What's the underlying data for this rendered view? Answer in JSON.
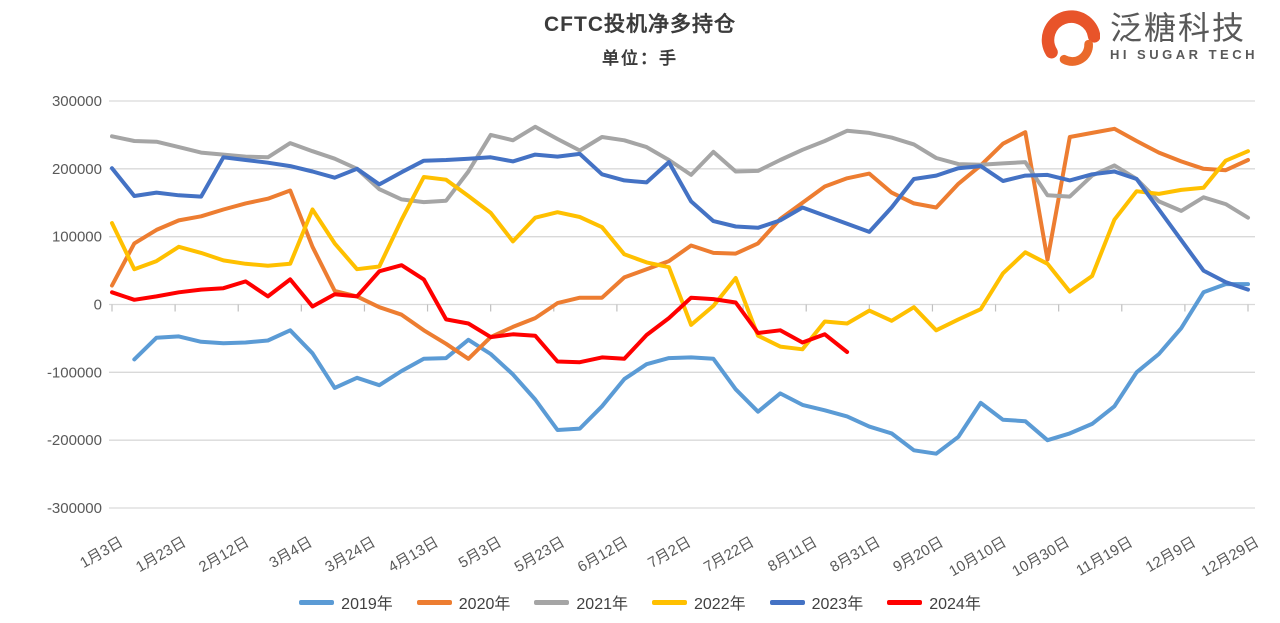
{
  "header": {
    "title": "CFTC投机净多持仓",
    "subtitle": "单位：手"
  },
  "logo": {
    "company": "泛糖科技",
    "tagline": "HI SUGAR TECH",
    "icon": "swirl-icon",
    "icon_color": "#E8542A",
    "text_color": "#595959"
  },
  "chart_data": {
    "type": "line",
    "title": "CFTC投机净多持仓",
    "unit_label": "单位：手",
    "ylim": [
      -300000,
      300000
    ],
    "y_ticks": [
      300000,
      200000,
      100000,
      0,
      -100000,
      -200000,
      -300000
    ],
    "grid": true,
    "legend_position": "bottom",
    "points_per_series": 52,
    "x_tick_labels": [
      "1月3日",
      "1月23日",
      "2月12日",
      "3月4日",
      "3月24日",
      "4月13日",
      "5月3日",
      "5月23日",
      "6月12日",
      "7月2日",
      "7月22日",
      "8月11日",
      "8月31日",
      "9月20日",
      "10月10日",
      "10月30日",
      "11月19日",
      "12月9日",
      "12月29日"
    ],
    "grid_color": "#D9D9D9",
    "tick_color": "#C0C0C0",
    "series": [
      {
        "name": "2019年",
        "color": "#5B9BD5",
        "values": [
          null,
          -81000,
          -49000,
          -47000,
          -55000,
          -57000,
          -56000,
          -53000,
          -38000,
          -72000,
          -123000,
          -108000,
          -119000,
          -98000,
          -80000,
          -79000,
          -52000,
          -73000,
          -103000,
          -140000,
          -185000,
          -183000,
          -150000,
          -110000,
          -88000,
          -79000,
          -78000,
          -80000,
          -125000,
          -158000,
          -131000,
          -148000,
          -156000,
          -165000,
          -180000,
          -190000,
          -215000,
          -220000,
          -195000,
          -145000,
          -170000,
          -172000,
          -200000,
          -190000,
          -176000,
          -150000,
          -100000,
          -73000,
          -35000,
          18000,
          30000,
          30000
        ]
      },
      {
        "name": "2020年",
        "color": "#ED7D31",
        "values": [
          28000,
          90000,
          110000,
          124000,
          130000,
          140000,
          149000,
          156000,
          168000,
          85000,
          20000,
          12000,
          -4000,
          -15000,
          -38000,
          -58000,
          -80000,
          -48000,
          -33000,
          -20000,
          2000,
          10000,
          10000,
          40000,
          52000,
          64000,
          87000,
          76000,
          75000,
          90000,
          126000,
          150000,
          174000,
          186000,
          193000,
          165000,
          149000,
          143000,
          178000,
          205000,
          237000,
          254000,
          66000,
          247000,
          253000,
          259000,
          241000,
          224000,
          211000,
          200000,
          198000,
          213000
        ]
      },
      {
        "name": "2021年",
        "color": "#A5A5A5",
        "values": [
          248000,
          241000,
          240000,
          232000,
          224000,
          221000,
          218000,
          217000,
          238000,
          226000,
          215000,
          200000,
          170000,
          155000,
          151000,
          153000,
          196000,
          250000,
          242000,
          262000,
          244000,
          227000,
          247000,
          242000,
          232000,
          213000,
          191000,
          225000,
          196000,
          197000,
          213000,
          228000,
          241000,
          256000,
          253000,
          246000,
          236000,
          216000,
          207000,
          206000,
          208000,
          210000,
          161000,
          159000,
          190000,
          205000,
          185000,
          152000,
          138000,
          158000,
          148000,
          128000
        ]
      },
      {
        "name": "2022年",
        "color": "#FFC000",
        "values": [
          120000,
          52000,
          64000,
          85000,
          76000,
          65000,
          60000,
          57000,
          60000,
          140000,
          90000,
          52000,
          56000,
          125000,
          188000,
          184000,
          160000,
          135000,
          93000,
          128000,
          136000,
          129000,
          114000,
          74000,
          62000,
          55000,
          -30000,
          -2000,
          39000,
          -46000,
          -62000,
          -66000,
          -25000,
          -28000,
          -9000,
          -24000,
          -4000,
          -38000,
          -22000,
          -7000,
          46000,
          77000,
          60000,
          19000,
          42000,
          125000,
          167000,
          163000,
          169000,
          172000,
          212000,
          226000
        ]
      },
      {
        "name": "2023年",
        "color": "#4472C4",
        "values": [
          201000,
          160000,
          165000,
          161000,
          159000,
          217000,
          213000,
          209000,
          204000,
          196000,
          187000,
          200000,
          177000,
          195000,
          212000,
          213000,
          215000,
          217000,
          211000,
          221000,
          218000,
          222000,
          192000,
          183000,
          180000,
          210000,
          152000,
          123000,
          115000,
          113000,
          124000,
          143000,
          131000,
          119000,
          107000,
          143000,
          185000,
          190000,
          201000,
          204000,
          182000,
          190000,
          191000,
          183000,
          192000,
          196000,
          185000,
          140000,
          95000,
          50000,
          33000,
          22000
        ]
      },
      {
        "name": "2024年",
        "color": "#FF0000",
        "values": [
          18000,
          7000,
          12000,
          18000,
          22000,
          24000,
          34000,
          12000,
          37000,
          -3000,
          15000,
          12000,
          49000,
          58000,
          37000,
          -22000,
          -28000,
          -48000,
          -44000,
          -46000,
          -84000,
          -85000,
          -78000,
          -80000,
          -45000,
          -20000,
          10000,
          8000,
          3000,
          -42000,
          -38000,
          -56000,
          -44000,
          -70000
        ]
      }
    ]
  }
}
